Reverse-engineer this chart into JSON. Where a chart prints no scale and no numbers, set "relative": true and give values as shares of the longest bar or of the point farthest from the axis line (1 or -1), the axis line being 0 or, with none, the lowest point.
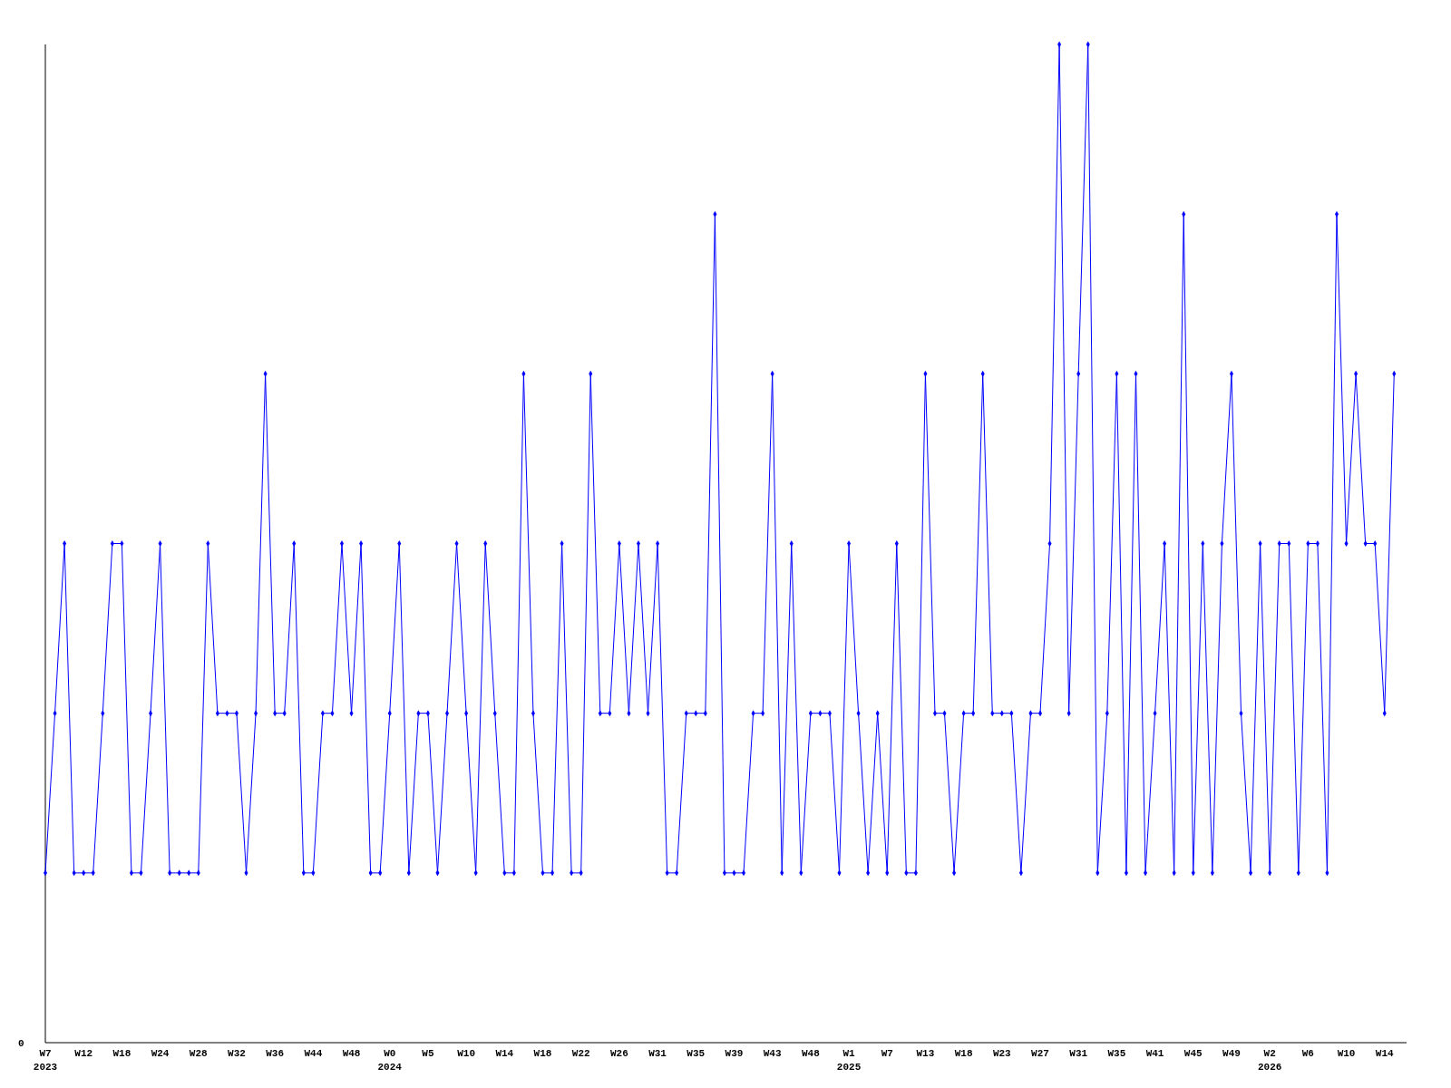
{
  "chart_data": {
    "type": "line",
    "relative": true,
    "marker": "diamond",
    "line_style": "solid",
    "annotations": [
      "0"
    ],
    "categories": [
      "W7\n2023",
      null,
      null,
      null,
      "W12",
      null,
      null,
      null,
      "W18",
      null,
      null,
      null,
      "W24",
      null,
      null,
      null,
      "W28",
      null,
      null,
      null,
      "W32",
      null,
      null,
      null,
      "W36",
      null,
      null,
      null,
      "W44",
      null,
      null,
      null,
      "W48",
      null,
      null,
      null,
      "W0\n2024",
      null,
      null,
      null,
      "W5",
      null,
      null,
      null,
      "W10",
      null,
      null,
      null,
      "W14",
      null,
      null,
      null,
      "W18",
      null,
      null,
      null,
      "W22",
      null,
      null,
      null,
      "W26",
      null,
      null,
      null,
      "W31",
      null,
      null,
      null,
      "W35",
      null,
      null,
      null,
      "W39",
      null,
      null,
      null,
      "W43",
      null,
      null,
      null,
      "W48",
      null,
      null,
      null,
      "W1\n2025",
      null,
      null,
      null,
      "W7",
      null,
      null,
      null,
      "W13",
      null,
      null,
      null,
      "W18",
      null,
      null,
      null,
      "W23",
      null,
      null,
      null,
      "W27",
      null,
      null,
      null,
      "W31",
      null,
      null,
      null,
      "W35",
      null,
      null,
      null,
      "W41",
      null,
      null,
      null,
      "W45",
      null,
      null,
      null,
      "W49",
      null,
      null,
      null,
      "W2\n2026",
      null,
      null,
      null,
      "W6",
      null,
      null,
      null,
      "W10",
      null,
      null,
      null,
      "W14",
      null
    ],
    "series": [
      {
        "color": "#0000ff",
        "values": [
          0.17,
          0.33,
          0.5,
          0.17,
          0.17,
          0.17,
          0.33,
          0.5,
          0.5,
          0.17,
          0.17,
          0.33,
          0.5,
          0.17,
          0.17,
          0.17,
          0.17,
          0.5,
          0.33,
          0.33,
          0.33,
          0.17,
          0.33,
          0.67,
          0.33,
          0.33,
          0.5,
          0.17,
          0.17,
          0.33,
          0.33,
          0.5,
          0.33,
          0.5,
          0.17,
          0.17,
          0.33,
          0.5,
          0.17,
          0.33,
          0.33,
          0.17,
          0.33,
          0.5,
          0.33,
          0.17,
          0.5,
          0.33,
          0.17,
          0.17,
          0.67,
          0.33,
          0.17,
          0.17,
          0.5,
          0.17,
          0.17,
          0.67,
          0.33,
          0.33,
          0.5,
          0.33,
          0.5,
          0.33,
          0.5,
          0.17,
          0.17,
          0.33,
          0.33,
          0.33,
          0.83,
          0.17,
          0.17,
          0.17,
          0.33,
          0.33,
          0.67,
          0.17,
          0.5,
          0.17,
          0.33,
          0.33,
          0.33,
          0.17,
          0.5,
          0.33,
          0.17,
          0.33,
          0.17,
          0.5,
          0.17,
          0.17,
          0.67,
          0.33,
          0.33,
          0.17,
          0.33,
          0.33,
          0.67,
          0.33,
          0.33,
          0.33,
          0.17,
          0.33,
          0.33,
          0.5,
          1,
          0.33,
          0.67,
          1,
          0.17,
          0.33,
          0.67,
          0.17,
          0.67,
          0.17,
          0.33,
          0.5,
          0.17,
          0.83,
          0.17,
          0.5,
          0.17,
          0.5,
          0.67,
          0.33,
          0.17,
          0.5,
          0.17,
          0.5,
          0.5,
          0.17,
          0.5,
          0.5,
          0.17,
          0.83,
          0.5,
          0.67,
          0.5,
          0.5,
          0.33,
          0.67
        ]
      }
    ]
  }
}
